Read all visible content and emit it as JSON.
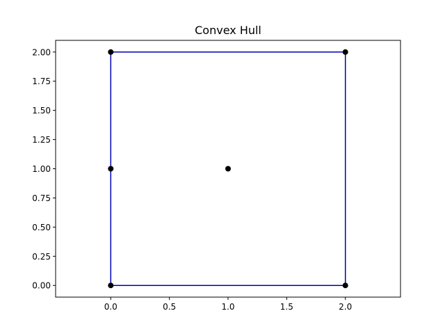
{
  "chart_data": {
    "type": "scatter",
    "title": "Convex Hull",
    "xlabel": "",
    "ylabel": "",
    "xlim": [
      -0.47,
      2.47
    ],
    "ylim": [
      -0.1,
      2.1
    ],
    "x_ticks": [
      0.0,
      0.5,
      1.0,
      1.5,
      2.0
    ],
    "x_tick_labels": [
      "0.0",
      "0.5",
      "1.0",
      "1.5",
      "2.0"
    ],
    "y_ticks": [
      0.0,
      0.25,
      0.5,
      0.75,
      1.0,
      1.25,
      1.5,
      1.75,
      2.0
    ],
    "y_tick_labels": [
      "0.00",
      "0.25",
      "0.50",
      "0.75",
      "1.00",
      "1.25",
      "1.50",
      "1.75",
      "2.00"
    ],
    "grid": false,
    "points": [
      {
        "x": 0,
        "y": 0
      },
      {
        "x": 0,
        "y": 1
      },
      {
        "x": 0,
        "y": 2
      },
      {
        "x": 1,
        "y": 1
      },
      {
        "x": 2,
        "y": 0
      },
      {
        "x": 2,
        "y": 2
      }
    ],
    "hull": [
      {
        "x": 0,
        "y": 0
      },
      {
        "x": 2,
        "y": 0
      },
      {
        "x": 2,
        "y": 2
      },
      {
        "x": 0,
        "y": 2
      },
      {
        "x": 0,
        "y": 1
      },
      {
        "x": 0,
        "y": 0
      }
    ],
    "colors": {
      "point": "#000000",
      "hull": "#0000b3",
      "axes": "#000000"
    }
  }
}
